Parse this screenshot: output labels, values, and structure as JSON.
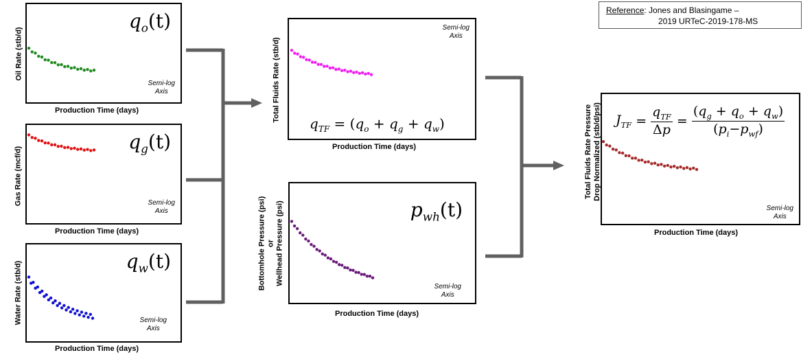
{
  "reference": {
    "label": "Reference",
    "text": ": Jones and Blasingame –",
    "line2": "2019 URTeC-2019-178-MS"
  },
  "common": {
    "x_label": "Production Time (days)",
    "axis_note_1": "Semi-log",
    "axis_note_2": "Axis"
  },
  "panels": {
    "oil": {
      "y_label": "Oil Rate (stb/d)",
      "formula": "q",
      "sub": "o",
      "arg": "(t)",
      "color": "#1e8a1e"
    },
    "gas": {
      "y_label": "Gas Rate (mcf/d)",
      "formula": "q",
      "sub": "g",
      "arg": "(t)",
      "color": "#e01010"
    },
    "water": {
      "y_label": "Water Rate (stb/d)",
      "formula": "q",
      "sub": "w",
      "arg": "(t)",
      "color": "#1010d0"
    },
    "total": {
      "y_label": "Total Fluids Rate (stb/d)",
      "formula": "q_TF = (q_o + q_g + q_w)",
      "color": "#f020f0"
    },
    "pressure": {
      "y_label_1": "Bottomhole Pressure (psi)",
      "y_label_2": "or",
      "y_label_3": "Wellhead Pressure (psi)",
      "formula": "p",
      "sub": "wh",
      "arg": "(t)",
      "color": "#6a1a7a"
    },
    "normalized": {
      "y_label_1": "Total Fluids Rate Pressure",
      "y_label_2": "Drop Normalized (stb/d/psi)",
      "formula": "J_TF = q_TF/Δp = (q_g + q_o + q_w)/(p_i−p_wf)",
      "color": "#a52a2a"
    }
  },
  "arrow_color": "#606060"
}
